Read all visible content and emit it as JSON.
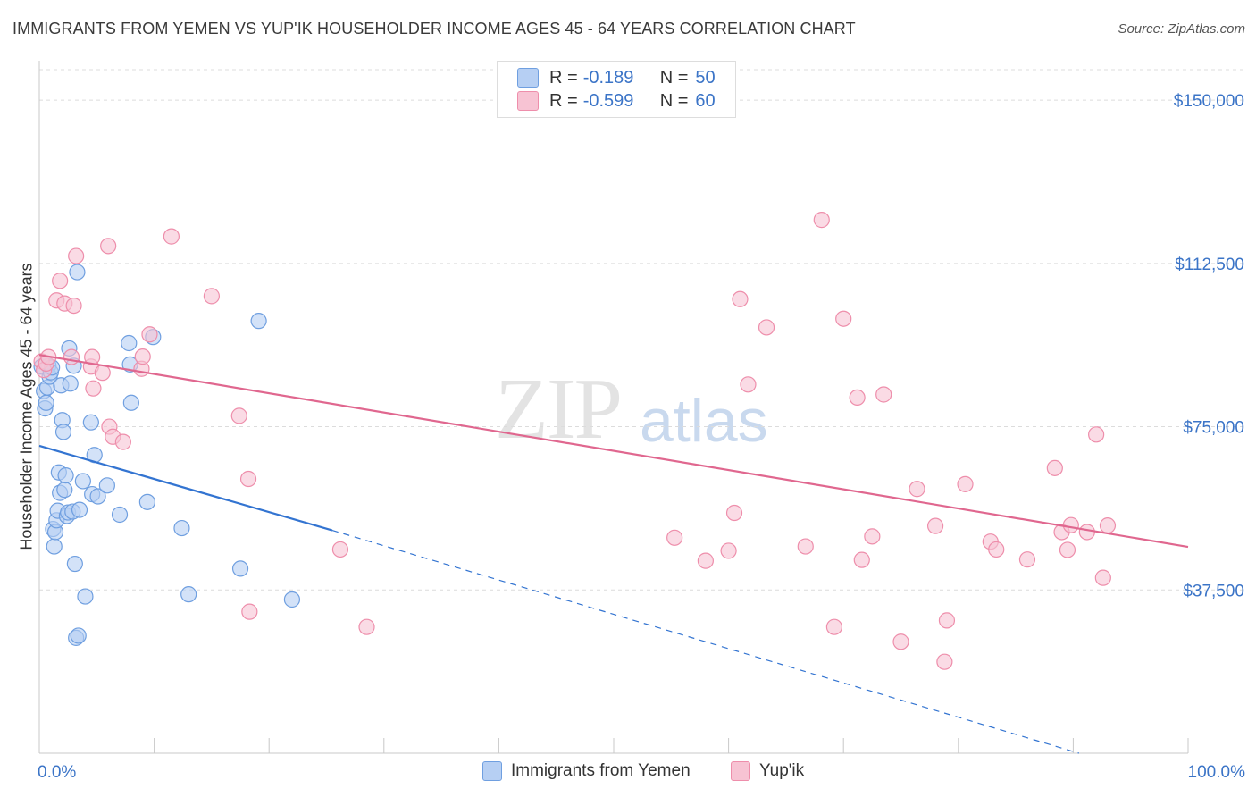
{
  "title": "IMMIGRANTS FROM YEMEN VS YUP'IK HOUSEHOLDER INCOME AGES 45 - 64 YEARS CORRELATION CHART",
  "source": "Source: ZipAtlas.com",
  "watermark": {
    "zip": "ZIP",
    "atlas": "atlas"
  },
  "legend": {
    "r_label": "R =",
    "n_label": "N =",
    "rows": [
      {
        "r": "-0.189",
        "n": "50"
      },
      {
        "r": "-0.599",
        "n": "60"
      }
    ]
  },
  "colors": {
    "blue_fill": "#b6cff3",
    "blue_stroke": "#6f9fe0",
    "blue_line": "#3374d1",
    "pink_fill": "#f7c3d3",
    "pink_stroke": "#ee8eab",
    "pink_line": "#e0678f",
    "tick_label": "#3b74c7"
  },
  "chart_data": {
    "type": "scatter",
    "title": "IMMIGRANTS FROM YEMEN VS YUP'IK HOUSEHOLDER INCOME AGES 45 - 64 YEARS CORRELATION CHART",
    "xlabel": "",
    "ylabel": "Householder Income Ages 45 - 64 years",
    "xlim": [
      0,
      100
    ],
    "ylim": [
      0,
      157000
    ],
    "x_tick_labels": [
      "0.0%",
      "100.0%"
    ],
    "y_ticks": [
      37500,
      75000,
      112500,
      150000
    ],
    "y_tick_labels": [
      "$37,500",
      "$75,000",
      "$112,500",
      "$150,000"
    ],
    "grid": true,
    "legend_position": "top-center",
    "series": [
      {
        "name": "Immigrants from Yemen",
        "points": [
          [
            0.2,
            88800
          ],
          [
            0.4,
            83200
          ],
          [
            0.5,
            79200
          ],
          [
            0.6,
            80500
          ],
          [
            0.7,
            84000
          ],
          [
            0.8,
            89000
          ],
          [
            0.9,
            86500
          ],
          [
            1.0,
            87500
          ],
          [
            1.2,
            51500
          ],
          [
            1.3,
            47500
          ],
          [
            1.4,
            50800
          ],
          [
            1.5,
            53500
          ],
          [
            1.6,
            55700
          ],
          [
            1.7,
            64500
          ],
          [
            1.8,
            59800
          ],
          [
            1.9,
            84500
          ],
          [
            2.0,
            76500
          ],
          [
            2.1,
            73800
          ],
          [
            2.2,
            60500
          ],
          [
            2.3,
            63800
          ],
          [
            2.4,
            54500
          ],
          [
            2.5,
            55300
          ],
          [
            2.6,
            93000
          ],
          [
            2.7,
            84900
          ],
          [
            2.9,
            55500
          ],
          [
            3.0,
            89000
          ],
          [
            3.1,
            43500
          ],
          [
            3.2,
            26500
          ],
          [
            3.3,
            110500
          ],
          [
            3.4,
            27000
          ],
          [
            3.5,
            55900
          ],
          [
            3.8,
            62500
          ],
          [
            4.0,
            36000
          ],
          [
            4.5,
            76000
          ],
          [
            4.6,
            59500
          ],
          [
            4.8,
            68500
          ],
          [
            5.1,
            59000
          ],
          [
            5.9,
            61500
          ],
          [
            7.0,
            54800
          ],
          [
            7.8,
            94200
          ],
          [
            7.9,
            89300
          ],
          [
            8.0,
            80500
          ],
          [
            9.4,
            57700
          ],
          [
            9.9,
            95600
          ],
          [
            12.4,
            51700
          ],
          [
            13.0,
            36500
          ],
          [
            17.5,
            42400
          ],
          [
            19.1,
            99300
          ],
          [
            22.0,
            35300
          ],
          [
            1.1,
            88600
          ]
        ]
      },
      {
        "name": "Yup'ik",
        "points": [
          [
            0.2,
            90000
          ],
          [
            0.4,
            88000
          ],
          [
            0.6,
            89500
          ],
          [
            0.8,
            91000
          ],
          [
            1.5,
            104000
          ],
          [
            1.8,
            108500
          ],
          [
            2.2,
            103300
          ],
          [
            2.8,
            91000
          ],
          [
            3.0,
            102800
          ],
          [
            3.2,
            114200
          ],
          [
            4.5,
            88800
          ],
          [
            4.6,
            91000
          ],
          [
            4.7,
            83800
          ],
          [
            5.5,
            87400
          ],
          [
            6.0,
            116500
          ],
          [
            6.1,
            75000
          ],
          [
            6.4,
            72700
          ],
          [
            7.3,
            71500
          ],
          [
            8.9,
            88300
          ],
          [
            9.0,
            91100
          ],
          [
            9.6,
            96200
          ],
          [
            11.5,
            118700
          ],
          [
            15.0,
            105000
          ],
          [
            17.4,
            77500
          ],
          [
            18.2,
            63000
          ],
          [
            18.3,
            32500
          ],
          [
            26.2,
            46800
          ],
          [
            28.5,
            29000
          ],
          [
            55.3,
            49500
          ],
          [
            58.0,
            44200
          ],
          [
            60.0,
            46500
          ],
          [
            60.5,
            55200
          ],
          [
            61.0,
            104300
          ],
          [
            61.7,
            84700
          ],
          [
            63.3,
            97800
          ],
          [
            66.7,
            47500
          ],
          [
            68.1,
            122500
          ],
          [
            69.2,
            29000
          ],
          [
            70.0,
            99800
          ],
          [
            71.2,
            81700
          ],
          [
            71.6,
            44400
          ],
          [
            72.5,
            49800
          ],
          [
            73.5,
            82400
          ],
          [
            75.0,
            25600
          ],
          [
            76.4,
            60700
          ],
          [
            78.0,
            52200
          ],
          [
            78.8,
            21000
          ],
          [
            79.0,
            30500
          ],
          [
            80.6,
            61800
          ],
          [
            82.8,
            48600
          ],
          [
            83.3,
            46800
          ],
          [
            86.0,
            44500
          ],
          [
            88.4,
            65500
          ],
          [
            89.0,
            50800
          ],
          [
            89.5,
            46700
          ],
          [
            89.8,
            52400
          ],
          [
            91.2,
            50800
          ],
          [
            92.0,
            73200
          ],
          [
            92.6,
            40300
          ],
          [
            93.0,
            52300
          ]
        ]
      }
    ],
    "trend_lines": [
      {
        "series": "Immigrants from Yemen",
        "solid": [
          [
            0,
            70600
          ],
          [
            25.5,
            51200
          ]
        ],
        "dashed_to": [
          90.5,
          0
        ]
      },
      {
        "series": "Yup'ik",
        "solid": [
          [
            0,
            91500
          ],
          [
            100,
            47400
          ]
        ]
      }
    ]
  }
}
